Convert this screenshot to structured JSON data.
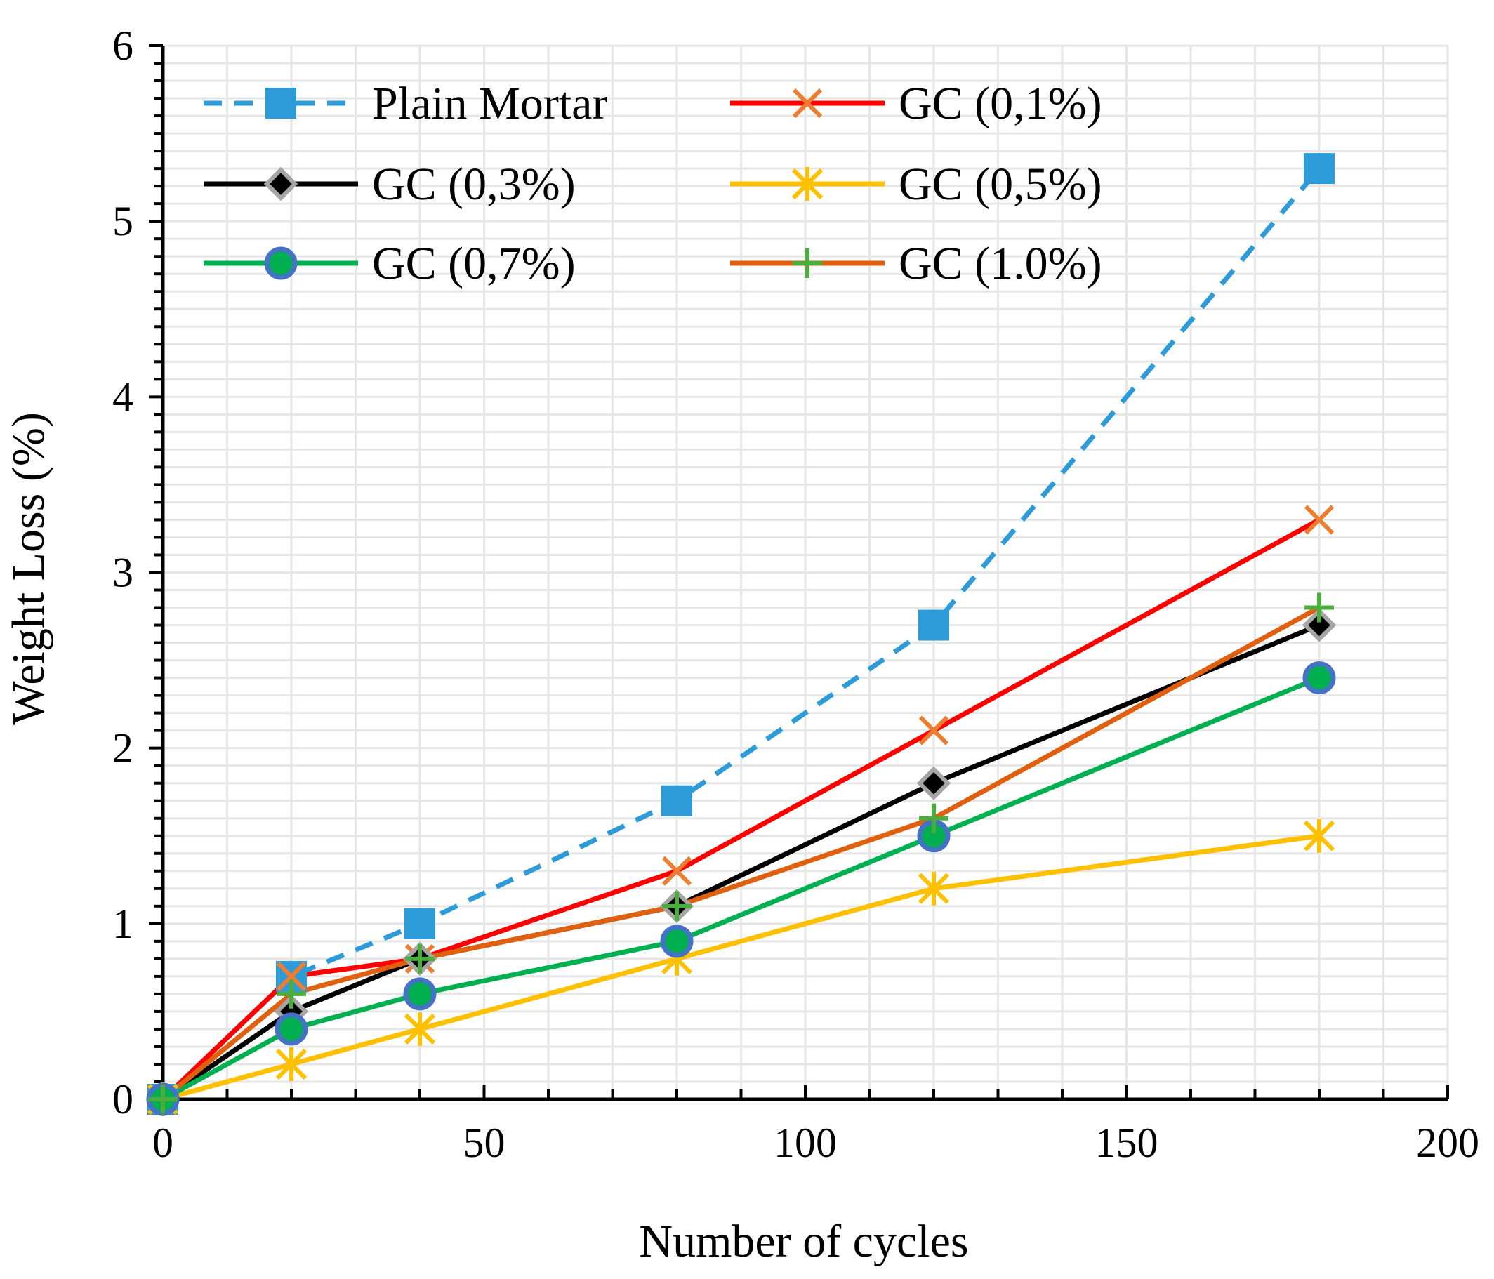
{
  "chart_data": {
    "type": "line",
    "title": "",
    "xlabel": "Number of cycles",
    "ylabel": "Weight Loss (%)",
    "xlim": [
      0,
      200
    ],
    "ylim": [
      0,
      6
    ],
    "xticks": [
      0,
      50,
      100,
      150,
      200
    ],
    "yticks": [
      0,
      1,
      2,
      3,
      4,
      5,
      6
    ],
    "x_tick_labels": [
      "0",
      "50",
      "100",
      "150",
      "200"
    ],
    "y_tick_labels": [
      "0",
      "1",
      "2",
      "3",
      "4",
      "5",
      "6"
    ],
    "grid": true,
    "legend_position": "top",
    "x": [
      0,
      20,
      40,
      80,
      120,
      180
    ],
    "series": [
      {
        "name": "Plain Mortar",
        "values": [
          0,
          0.7,
          1.0,
          1.7,
          2.7,
          5.3
        ],
        "color": "#2e9bd9",
        "marker": "square",
        "line_style": "dashed"
      },
      {
        "name": "GC (0,1%)",
        "values": [
          0,
          0.7,
          0.8,
          1.3,
          2.1,
          3.3
        ],
        "color": "#ff0000",
        "marker": "x",
        "marker_color": "#ed7d31",
        "line_style": "solid"
      },
      {
        "name": "GC (0,3%)",
        "values": [
          0,
          0.5,
          0.8,
          1.1,
          1.8,
          2.7
        ],
        "color": "#000000",
        "marker": "diamond",
        "marker_color": "#a5a5a5",
        "line_style": "solid"
      },
      {
        "name": "GC (0,5%)",
        "values": [
          0,
          0.2,
          0.4,
          0.8,
          1.2,
          1.5
        ],
        "color": "#ffc000",
        "marker": "asterisk",
        "marker_color": "#ffc000",
        "line_style": "solid"
      },
      {
        "name": "GC (0,7%)",
        "values": [
          0,
          0.4,
          0.6,
          0.9,
          1.5,
          2.4
        ],
        "color": "#00b050",
        "marker": "circle",
        "marker_color": "#4472c4",
        "line_style": "solid"
      },
      {
        "name": "GC (1.0%)",
        "values": [
          0,
          0.6,
          0.8,
          1.1,
          1.6,
          2.8
        ],
        "color": "#e0600f",
        "marker": "plus",
        "marker_color": "#4aad3c",
        "line_style": "solid"
      }
    ]
  }
}
